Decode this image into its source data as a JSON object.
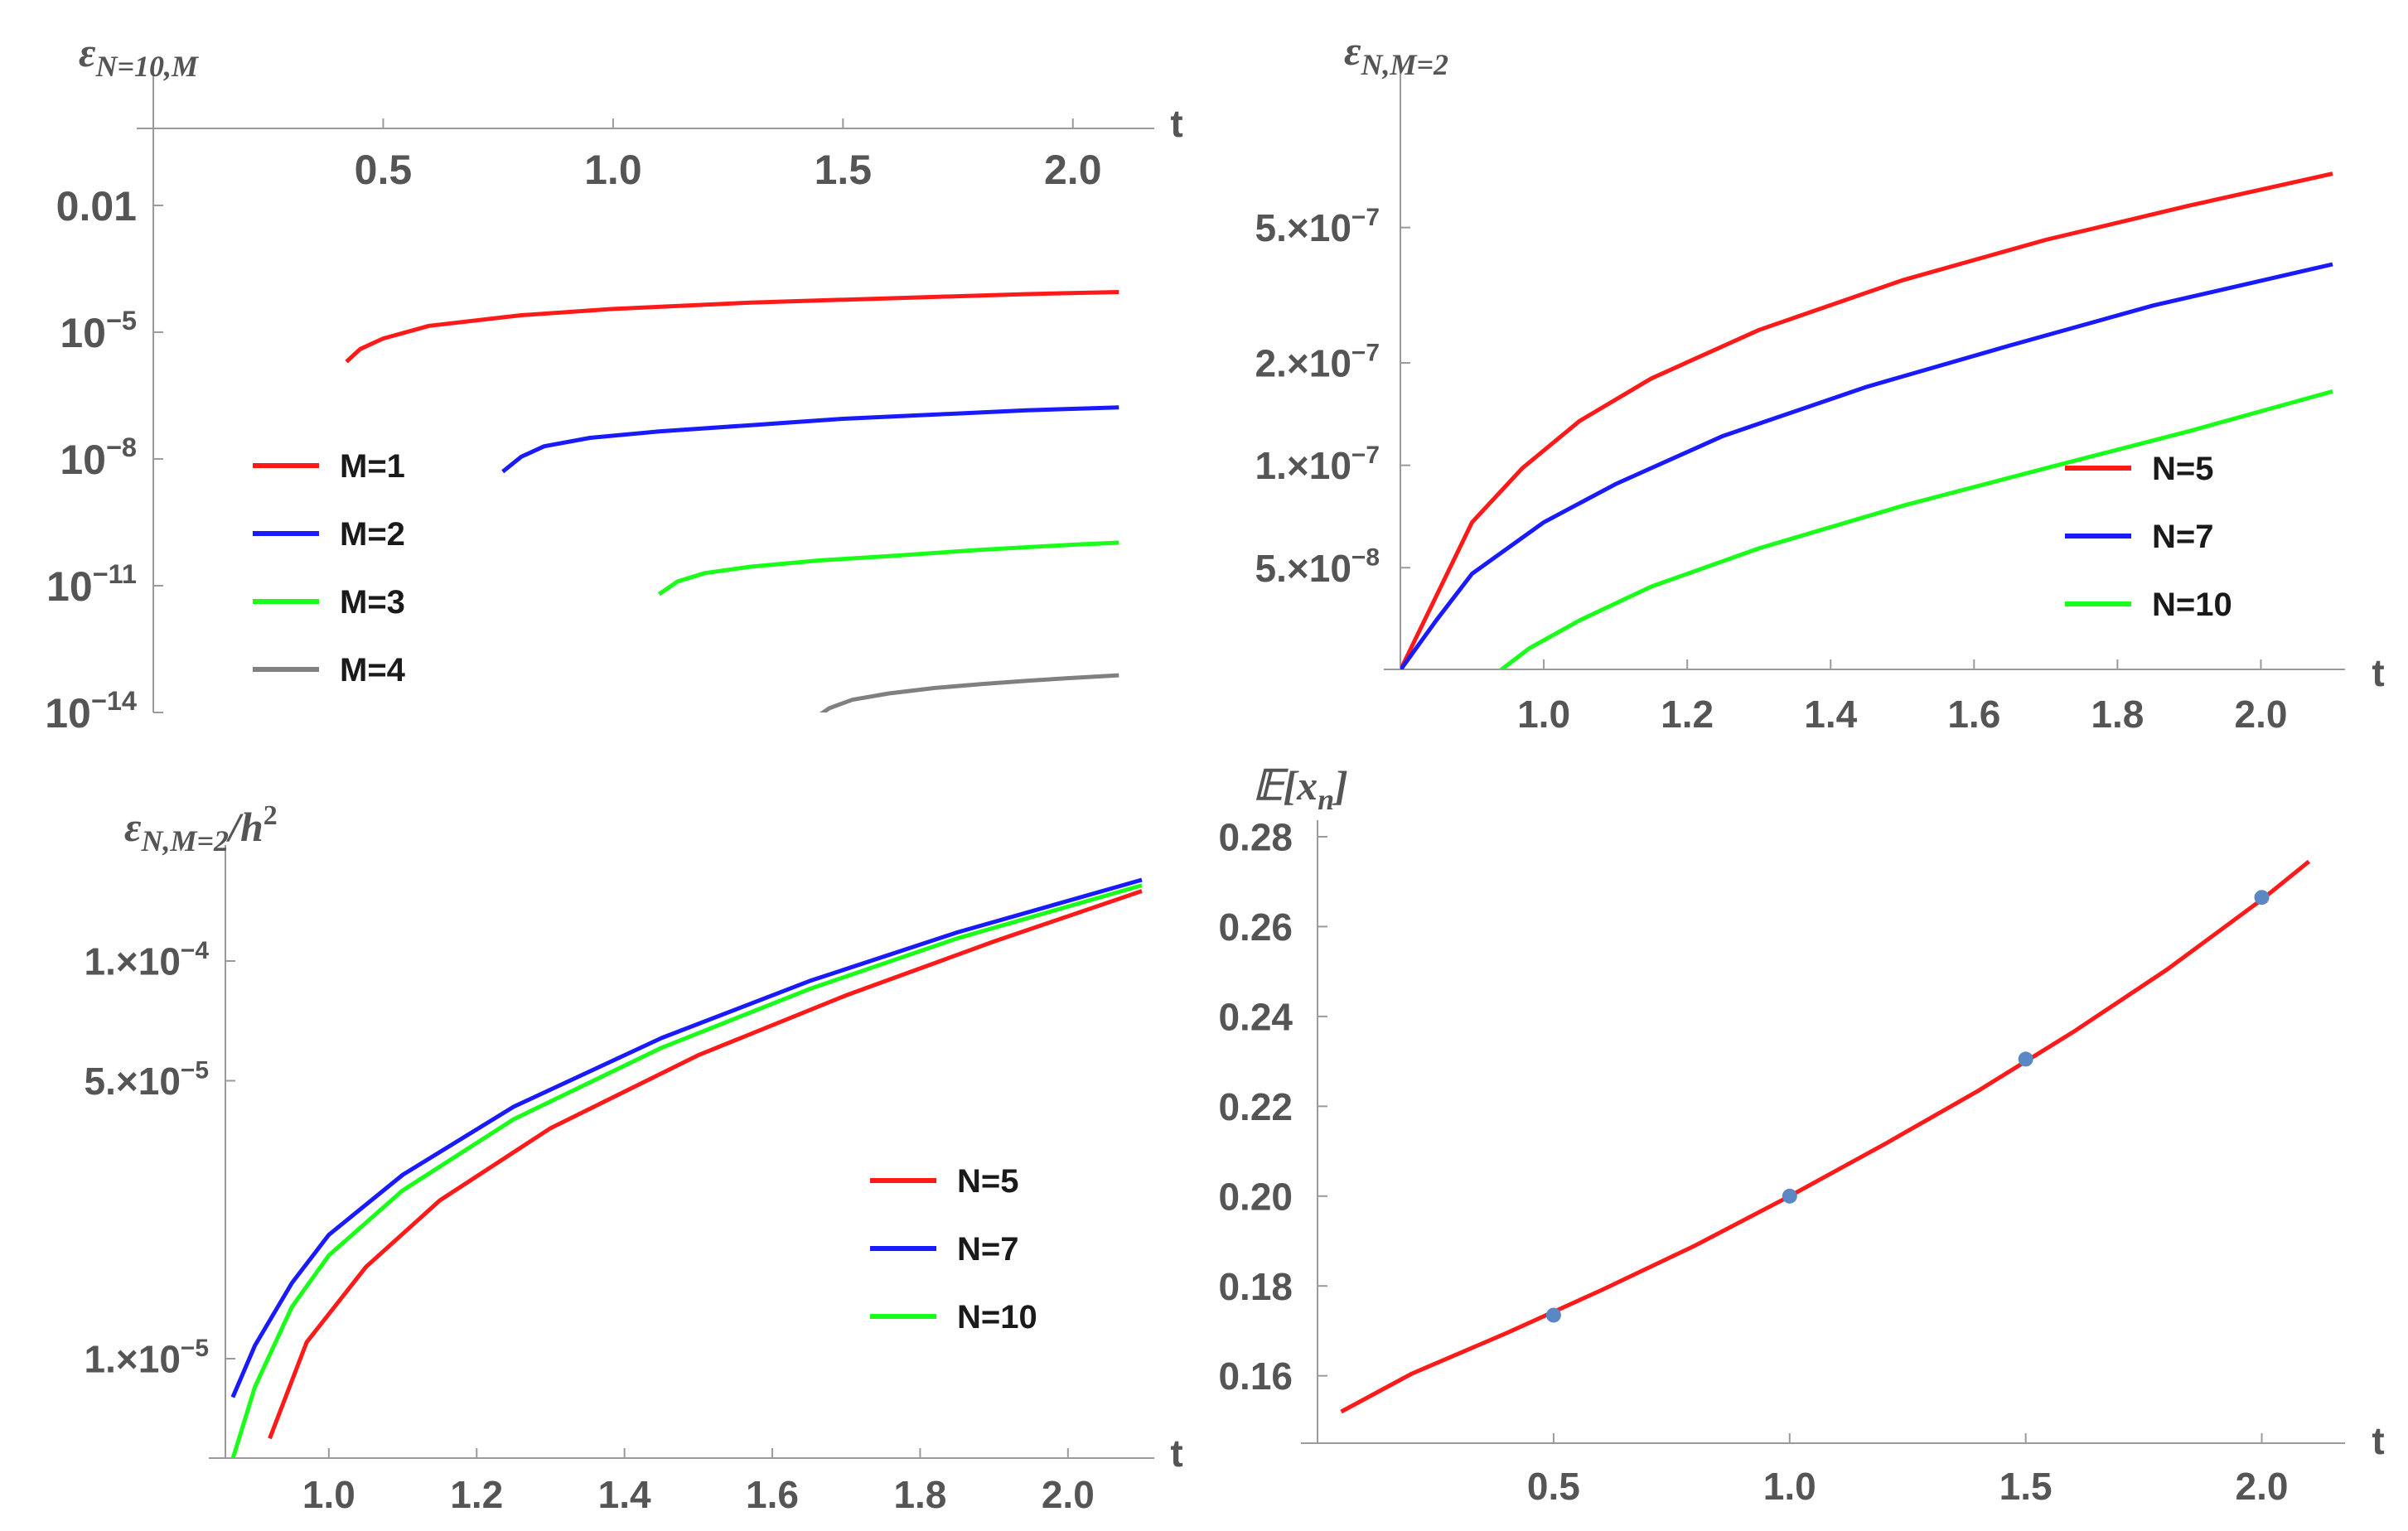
{
  "colors": {
    "red": "#ff1a1a",
    "blue": "#1a1aff",
    "green": "#1aff1a",
    "gray": "#808080",
    "marker": "#5b87c5",
    "axis": "#9a9a9a",
    "text": "#555555"
  },
  "chart_data": [
    {
      "id": "panel-top-left",
      "type": "line",
      "scale_y": "log",
      "title_main": "ε",
      "title_sub": "N=10,M",
      "xlabel": "t",
      "xlim": [
        0.0,
        2.15
      ],
      "ylim_log10": [
        -14,
        0.9
      ],
      "x_ticks": [
        "0.5",
        "1.0",
        "1.5",
        "2.0"
      ],
      "x_tick_values": [
        0.5,
        1.0,
        1.5,
        2.0
      ],
      "y_ticks": [
        {
          "exp": -2,
          "text": "0.01",
          "base": "",
          "sup": ""
        },
        {
          "exp": -5,
          "text": "",
          "base": "10",
          "sup": "−5"
        },
        {
          "exp": -8,
          "text": "",
          "base": "10",
          "sup": "−8"
        },
        {
          "exp": -11,
          "text": "",
          "base": "10",
          "sup": "−11"
        },
        {
          "exp": -14,
          "text": "",
          "base": "10",
          "sup": "−14"
        }
      ],
      "legend_position": "left",
      "series": [
        {
          "name": "M=1",
          "color": "red",
          "x": [
            0.42,
            0.45,
            0.5,
            0.6,
            0.8,
            1.0,
            1.3,
            1.6,
            1.9,
            2.1
          ],
          "log10_y": [
            -5.7,
            -5.4,
            -5.15,
            -4.85,
            -4.6,
            -4.45,
            -4.3,
            -4.2,
            -4.1,
            -4.05
          ]
        },
        {
          "name": "M=2",
          "color": "blue",
          "x": [
            0.76,
            0.8,
            0.85,
            0.95,
            1.1,
            1.3,
            1.5,
            1.7,
            1.9,
            2.1
          ],
          "log10_y": [
            -8.3,
            -7.95,
            -7.7,
            -7.5,
            -7.35,
            -7.2,
            -7.05,
            -6.95,
            -6.85,
            -6.78
          ]
        },
        {
          "name": "M=3",
          "color": "green",
          "x": [
            1.1,
            1.14,
            1.2,
            1.3,
            1.45,
            1.6,
            1.8,
            2.0,
            2.1
          ],
          "log10_y": [
            -11.2,
            -10.9,
            -10.7,
            -10.55,
            -10.4,
            -10.3,
            -10.15,
            -10.03,
            -9.98
          ]
        },
        {
          "name": "M=4",
          "color": "gray",
          "x": [
            1.43,
            1.47,
            1.52,
            1.6,
            1.7,
            1.8,
            1.9,
            2.0,
            2.1
          ],
          "log10_y": [
            -14.2,
            -13.9,
            -13.7,
            -13.55,
            -13.42,
            -13.33,
            -13.25,
            -13.18,
            -13.12
          ]
        }
      ]
    },
    {
      "id": "panel-top-right",
      "type": "line",
      "scale_y": "log",
      "title_main": "ε",
      "title_sub": "N,M=2",
      "xlabel": "t",
      "xlim": [
        0.8,
        2.1
      ],
      "ylim_log10": [
        -7.6,
        -5.9
      ],
      "x_ticks": [
        "1.0",
        "1.2",
        "1.4",
        "1.6",
        "1.8",
        "2.0"
      ],
      "x_tick_values": [
        1.0,
        1.2,
        1.4,
        1.6,
        1.8,
        2.0
      ],
      "y_ticks": [
        {
          "value": 5e-07,
          "mant": "5.",
          "base": "×10",
          "sup": "−7"
        },
        {
          "value": 2e-07,
          "mant": "2.",
          "base": "×10",
          "sup": "−7"
        },
        {
          "value": 1e-07,
          "mant": "1.",
          "base": "×10",
          "sup": "−7"
        },
        {
          "value": 5e-08,
          "mant": "5.",
          "base": "×10",
          "sup": "−8"
        }
      ],
      "legend_position": "right",
      "series": [
        {
          "name": "N=5",
          "color": "red",
          "x": [
            0.8,
            0.9,
            0.97,
            1.05,
            1.15,
            1.3,
            1.5,
            1.7,
            1.9,
            2.1
          ],
          "y": [
            2.5e-08,
            6.8e-08,
            9.8e-08,
            1.35e-07,
            1.8e-07,
            2.5e-07,
            3.5e-07,
            4.6e-07,
            5.8e-07,
            7.2e-07
          ]
        },
        {
          "name": "N=7",
          "color": "blue",
          "x": [
            0.8,
            0.85,
            0.9,
            1.0,
            1.1,
            1.25,
            1.45,
            1.65,
            1.85,
            2.1
          ],
          "y": [
            2.5e-08,
            3.5e-08,
            4.8e-08,
            6.8e-08,
            8.8e-08,
            1.22e-07,
            1.7e-07,
            2.25e-07,
            2.95e-07,
            3.9e-07
          ]
        },
        {
          "name": "N=10",
          "color": "green",
          "x": [
            0.94,
            0.98,
            1.05,
            1.15,
            1.3,
            1.5,
            1.7,
            1.9,
            2.1
          ],
          "y": [
            2.5e-08,
            2.9e-08,
            3.5e-08,
            4.4e-08,
            5.7e-08,
            7.6e-08,
            9.8e-08,
            1.26e-07,
            1.65e-07
          ]
        }
      ]
    },
    {
      "id": "panel-bottom-left",
      "type": "line",
      "scale_y": "log",
      "title_main": "ε",
      "title_sub": "N,M=2",
      "title_tail": "/h",
      "title_tail_sup": "2",
      "xlabel": "t",
      "xlim": [
        0.86,
        2.1
      ],
      "ylim_log10": [
        -5.25,
        -3.75
      ],
      "x_ticks": [
        "1.0",
        "1.2",
        "1.4",
        "1.6",
        "1.8",
        "2.0"
      ],
      "x_tick_values": [
        1.0,
        1.2,
        1.4,
        1.6,
        1.8,
        2.0
      ],
      "y_ticks": [
        {
          "value": 0.0001,
          "mant": "1.",
          "base": "×10",
          "sup": "−4"
        },
        {
          "value": 5e-05,
          "mant": "5.",
          "base": "×10",
          "sup": "−5"
        },
        {
          "value": 1e-05,
          "mant": "1.",
          "base": "×10",
          "sup": "−5"
        }
      ],
      "legend_position": "right",
      "series": [
        {
          "name": "N=5",
          "color": "red",
          "x": [
            0.92,
            0.97,
            1.05,
            1.15,
            1.3,
            1.5,
            1.7,
            1.9,
            2.1
          ],
          "y": [
            6.3e-06,
            1.1e-05,
            1.7e-05,
            2.5e-05,
            3.8e-05,
            5.8e-05,
            8.2e-05,
            0.000112,
            0.00015
          ]
        },
        {
          "name": "N=7",
          "color": "blue",
          "x": [
            0.87,
            0.9,
            0.95,
            1.0,
            1.1,
            1.25,
            1.45,
            1.65,
            1.85,
            2.1
          ],
          "y": [
            8e-06,
            1.08e-05,
            1.55e-05,
            2.05e-05,
            2.9e-05,
            4.3e-05,
            6.4e-05,
            8.9e-05,
            0.000118,
            0.00016
          ]
        },
        {
          "name": "N=10",
          "color": "green",
          "x": [
            0.87,
            0.9,
            0.95,
            1.0,
            1.1,
            1.25,
            1.45,
            1.65,
            1.85,
            2.1
          ],
          "y": [
            5.6e-06,
            8.5e-06,
            1.35e-05,
            1.82e-05,
            2.65e-05,
            4e-05,
            6.05e-05,
            8.5e-05,
            0.000114,
            0.000155
          ]
        }
      ]
    },
    {
      "id": "panel-bottom-right",
      "type": "line",
      "scale_y": "linear",
      "title_main": "𝔼[x",
      "title_sub": "n",
      "title_tail": "]",
      "xlabel": "t",
      "xlim": [
        0.0,
        2.15
      ],
      "ylim": [
        0.145,
        0.28
      ],
      "x_ticks": [
        "0.5",
        "1.0",
        "1.5",
        "2.0"
      ],
      "x_tick_values": [
        0.5,
        1.0,
        1.5,
        2.0
      ],
      "y_ticks": [
        "0.16",
        "0.18",
        "0.20",
        "0.22",
        "0.24",
        "0.26",
        "0.28"
      ],
      "y_tick_values": [
        0.16,
        0.18,
        0.2,
        0.22,
        0.24,
        0.26,
        0.28
      ],
      "series": [
        {
          "name": "E[x_n]",
          "color": "red",
          "x": [
            0.05,
            0.2,
            0.4,
            0.6,
            0.8,
            1.0,
            1.2,
            1.4,
            1.6,
            1.8,
            2.0,
            2.1
          ],
          "y": [
            0.152,
            0.1605,
            0.1695,
            0.179,
            0.189,
            0.2,
            0.2115,
            0.2235,
            0.2365,
            0.2505,
            0.266,
            0.2745
          ]
        }
      ],
      "points": {
        "x": [
          0.5,
          1.0,
          1.5,
          2.0
        ],
        "y": [
          0.1735,
          0.2,
          0.2305,
          0.2665
        ],
        "color": "marker"
      }
    }
  ]
}
